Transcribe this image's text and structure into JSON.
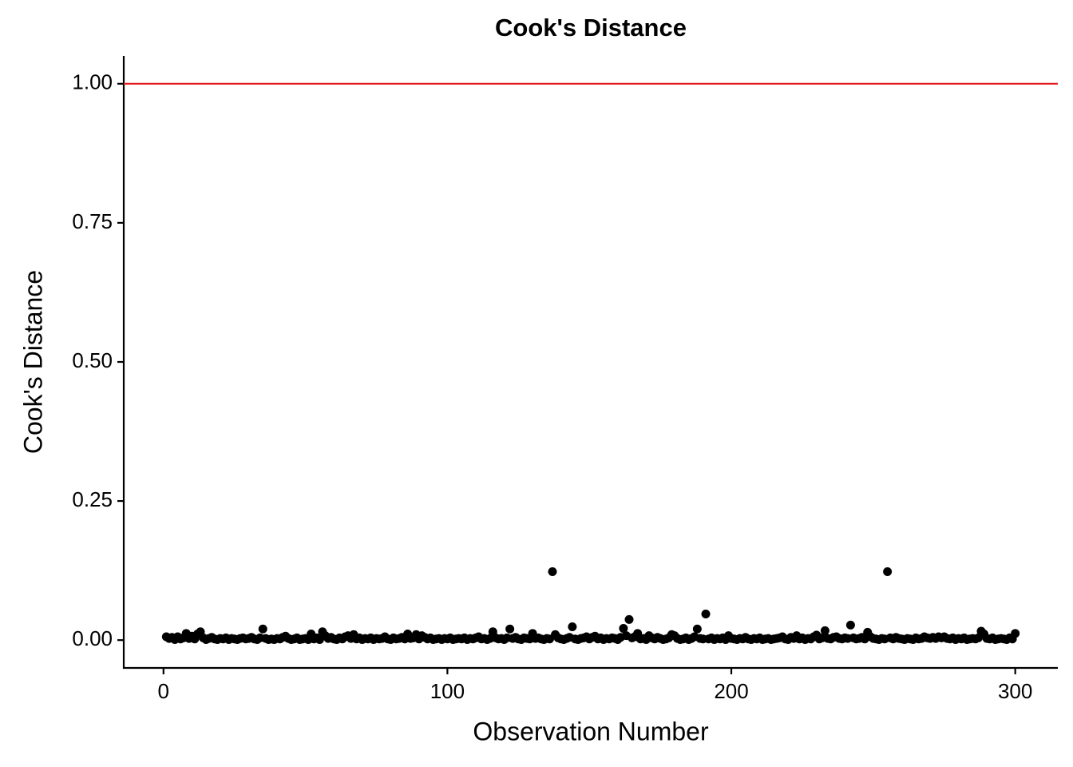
{
  "chart_data": {
    "type": "scatter",
    "title": "Cook's Distance",
    "x_label": "Observation Number",
    "y_label": "Cook's Distance",
    "color": "#000000",
    "hline": 1,
    "hline_color": "#e41a1c",
    "xlim": [
      -14,
      315
    ],
    "ylim": [
      -0.05,
      1.05
    ],
    "xticks": [
      0,
      100,
      200,
      300
    ],
    "yticks": [
      {
        "value": 0,
        "label": "0.00"
      },
      {
        "value": 0.25,
        "label": "0.25"
      },
      {
        "value": 0.5,
        "label": "0.50"
      },
      {
        "value": 0.75,
        "label": "0.75"
      },
      {
        "value": 1,
        "label": "1.00"
      }
    ],
    "x": [
      1,
      2,
      3,
      4,
      5,
      6,
      7,
      8,
      9,
      10,
      11,
      12,
      13,
      14,
      15,
      16,
      17,
      18,
      19,
      20,
      21,
      22,
      23,
      24,
      25,
      26,
      27,
      28,
      29,
      30,
      31,
      32,
      33,
      34,
      35,
      36,
      37,
      38,
      39,
      40,
      41,
      42,
      43,
      44,
      45,
      46,
      47,
      48,
      49,
      50,
      51,
      52,
      53,
      54,
      55,
      56,
      57,
      58,
      59,
      60,
      61,
      62,
      63,
      64,
      65,
      66,
      67,
      68,
      69,
      70,
      71,
      72,
      73,
      74,
      75,
      76,
      77,
      78,
      79,
      80,
      81,
      82,
      83,
      84,
      85,
      86,
      87,
      88,
      89,
      90,
      91,
      92,
      93,
      94,
      95,
      96,
      97,
      98,
      99,
      100,
      101,
      102,
      103,
      104,
      105,
      106,
      107,
      108,
      109,
      110,
      111,
      112,
      113,
      114,
      115,
      116,
      117,
      118,
      119,
      120,
      121,
      122,
      123,
      124,
      125,
      126,
      127,
      128,
      129,
      130,
      131,
      132,
      133,
      134,
      135,
      136,
      137,
      138,
      139,
      140,
      141,
      142,
      143,
      144,
      145,
      146,
      147,
      148,
      149,
      150,
      151,
      152,
      153,
      154,
      155,
      156,
      157,
      158,
      159,
      160,
      161,
      162,
      163,
      164,
      165,
      166,
      167,
      168,
      169,
      170,
      171,
      172,
      173,
      174,
      175,
      176,
      177,
      178,
      179,
      180,
      181,
      182,
      183,
      184,
      185,
      186,
      187,
      188,
      189,
      190,
      191,
      192,
      193,
      194,
      195,
      196,
      197,
      198,
      199,
      200,
      201,
      202,
      203,
      204,
      205,
      206,
      207,
      208,
      209,
      210,
      211,
      212,
      213,
      214,
      215,
      216,
      217,
      218,
      219,
      220,
      221,
      222,
      223,
      224,
      225,
      226,
      227,
      228,
      229,
      230,
      231,
      232,
      233,
      234,
      235,
      236,
      237,
      238,
      239,
      240,
      241,
      242,
      243,
      244,
      245,
      246,
      247,
      248,
      249,
      250,
      251,
      252,
      253,
      254,
      255,
      256,
      257,
      258,
      259,
      260,
      261,
      262,
      263,
      264,
      265,
      266,
      267,
      268,
      269,
      270,
      271,
      272,
      273,
      274,
      275,
      276,
      277,
      278,
      279,
      280,
      281,
      282,
      283,
      284,
      285,
      286,
      287,
      288,
      289,
      290,
      291,
      292,
      293,
      294,
      295,
      296,
      297,
      298,
      299,
      300
    ],
    "values": [
      0.006,
      0.003,
      0.005,
      0.001,
      0.006,
      0.002,
      0.004,
      0.012,
      0.003,
      0.007,
      0.002,
      0.011,
      0.015,
      0.004,
      0.001,
      0.003,
      0.005,
      0.002,
      0.001,
      0.003,
      0.002,
      0.004,
      0.001,
      0.003,
      0.002,
      0.001,
      0.003,
      0.004,
      0.002,
      0.003,
      0.005,
      0.002,
      0.001,
      0.004,
      0.02,
      0.003,
      0.001,
      0.002,
      0.001,
      0.003,
      0.002,
      0.005,
      0.007,
      0.003,
      0.001,
      0.002,
      0.004,
      0.001,
      0.002,
      0.003,
      0.001,
      0.011,
      0.002,
      0.004,
      0.001,
      0.015,
      0.008,
      0.003,
      0.005,
      0.002,
      0.001,
      0.004,
      0.002,
      0.006,
      0.008,
      0.003,
      0.01,
      0.002,
      0.004,
      0.001,
      0.003,
      0.002,
      0.004,
      0.001,
      0.003,
      0.002,
      0.003,
      0.006,
      0.002,
      0.001,
      0.004,
      0.002,
      0.003,
      0.005,
      0.002,
      0.011,
      0.003,
      0.004,
      0.01,
      0.002,
      0.008,
      0.005,
      0.002,
      0.004,
      0.001,
      0.002,
      0.003,
      0.001,
      0.003,
      0.002,
      0.004,
      0.001,
      0.002,
      0.003,
      0.002,
      0.004,
      0.001,
      0.003,
      0.002,
      0.004,
      0.006,
      0.002,
      0.003,
      0.001,
      0.003,
      0.015,
      0.004,
      0.002,
      0.003,
      0.001,
      0.004,
      0.02,
      0.003,
      0.005,
      0.002,
      0.001,
      0.004,
      0.003,
      0.002,
      0.012,
      0.003,
      0.004,
      0.002,
      0.001,
      0.003,
      0.002,
      0.123,
      0.01,
      0.004,
      0.002,
      0.001,
      0.003,
      0.005,
      0.024,
      0.002,
      0.001,
      0.003,
      0.004,
      0.006,
      0.002,
      0.005,
      0.007,
      0.002,
      0.004,
      0.001,
      0.003,
      0.002,
      0.004,
      0.003,
      0.001,
      0.005,
      0.021,
      0.008,
      0.037,
      0.004,
      0.006,
      0.012,
      0.002,
      0.003,
      0.001,
      0.008,
      0.004,
      0.002,
      0.005,
      0.003,
      0.001,
      0.002,
      0.004,
      0.01,
      0.008,
      0.003,
      0.001,
      0.002,
      0.004,
      0.001,
      0.003,
      0.006,
      0.02,
      0.003,
      0.002,
      0.047,
      0.002,
      0.004,
      0.001,
      0.003,
      0.002,
      0.004,
      0.001,
      0.008,
      0.003,
      0.002,
      0.001,
      0.003,
      0.002,
      0.005,
      0.002,
      0.001,
      0.003,
      0.002,
      0.004,
      0.001,
      0.002,
      0.003,
      0.001,
      0.002,
      0.003,
      0.004,
      0.006,
      0.002,
      0.001,
      0.005,
      0.003,
      0.008,
      0.002,
      0.004,
      0.001,
      0.003,
      0.002,
      0.006,
      0.009,
      0.002,
      0.004,
      0.017,
      0.003,
      0.002,
      0.005,
      0.006,
      0.003,
      0.002,
      0.004,
      0.003,
      0.027,
      0.004,
      0.002,
      0.003,
      0.005,
      0.002,
      0.014,
      0.006,
      0.003,
      0.002,
      0.001,
      0.003,
      0.002,
      0.123,
      0.004,
      0.002,
      0.005,
      0.003,
      0.002,
      0.001,
      0.003,
      0.002,
      0.001,
      0.004,
      0.002,
      0.003,
      0.006,
      0.004,
      0.003,
      0.005,
      0.003,
      0.006,
      0.004,
      0.006,
      0.003,
      0.002,
      0.004,
      0.001,
      0.003,
      0.002,
      0.004,
      0.001,
      0.002,
      0.003,
      0.002,
      0.004,
      0.016,
      0.011,
      0.003,
      0.002,
      0.004,
      0.001,
      0.002,
      0.003,
      0.002,
      0.001,
      0.004,
      0.002,
      0.012
    ]
  }
}
